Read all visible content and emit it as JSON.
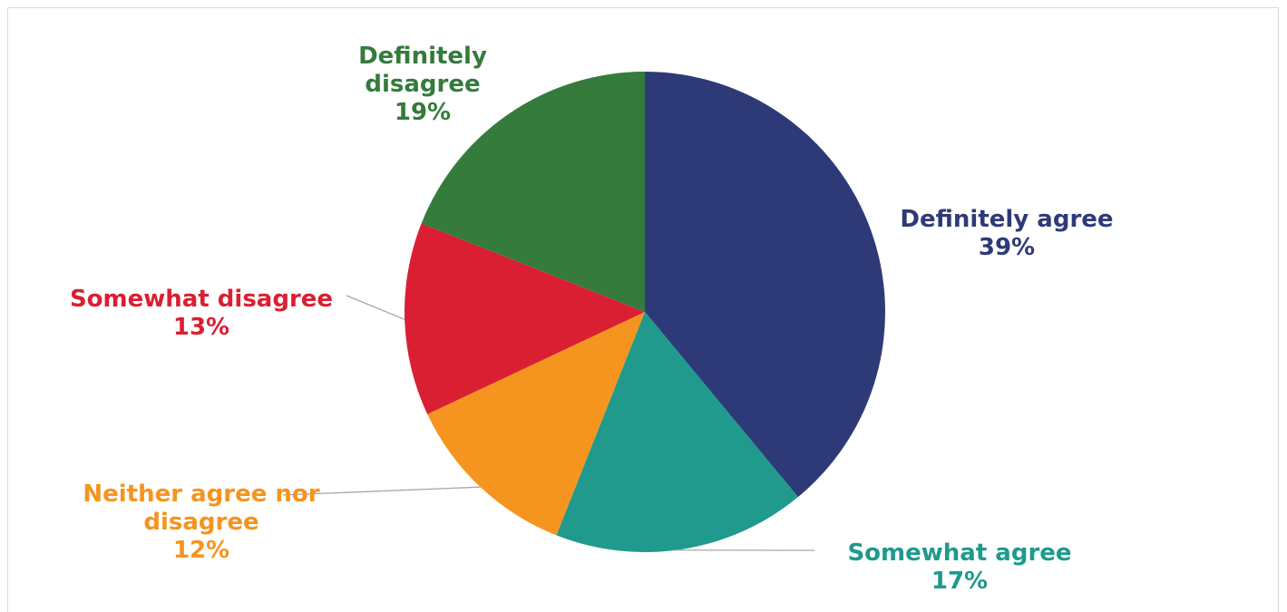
{
  "chart_data": {
    "type": "pie",
    "title": "",
    "start_angle_deg": 0,
    "direction": "clockwise",
    "slices": [
      {
        "label": "Definitely agree",
        "value": 39,
        "display": "39%",
        "color": "#2e3a78"
      },
      {
        "label": "Somewhat agree",
        "value": 17,
        "display": "17%",
        "color": "#1f9a8c"
      },
      {
        "label": "Neither agree nor\ndisagree",
        "value": 12,
        "display": "12%",
        "color": "#f5941e"
      },
      {
        "label": "Somewhat disagree",
        "value": 13,
        "display": "13%",
        "color": "#da1f33"
      },
      {
        "label": "Definitely\ndisagree",
        "value": 19,
        "display": "19%",
        "color": "#347b3c"
      }
    ],
    "leader_line_color": "#a6a6a6"
  }
}
